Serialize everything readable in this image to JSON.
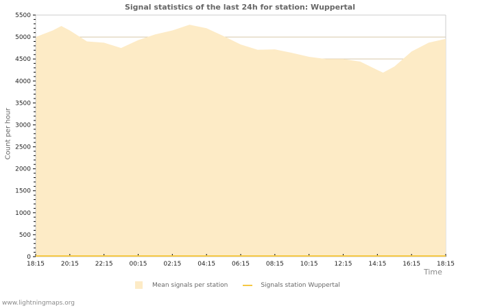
{
  "header": {
    "title": "Signal statistics of the last 24h for station: Wuppertal"
  },
  "axes": {
    "ylabel": "Count per hour",
    "xlabel": "Time"
  },
  "legend": {
    "items": [
      {
        "label": "Mean signals per station",
        "type": "area",
        "color": "#fdebc6"
      },
      {
        "label": "Signals station Wuppertal",
        "type": "line",
        "color": "#f5c842"
      }
    ]
  },
  "footer": {
    "text": "www.lightningmaps.org"
  },
  "colors": {
    "area_fill": "#fdebc6",
    "line": "#f5c842",
    "grid": "#d8c8a8",
    "axis": "#cccccc"
  },
  "chart_data": {
    "type": "area",
    "title": "Signal statistics of the last 24h for station: Wuppertal",
    "xlabel": "Time",
    "ylabel": "Count per hour",
    "ylim": [
      0,
      5500
    ],
    "yticks": [
      0,
      500,
      1000,
      1500,
      2000,
      2500,
      3000,
      3500,
      4000,
      4500,
      5000,
      5500
    ],
    "xtick_labels": [
      "18:15",
      "20:15",
      "22:15",
      "00:15",
      "02:15",
      "04:15",
      "06:15",
      "08:15",
      "10:15",
      "12:15",
      "14:15",
      "16:15",
      "18:15"
    ],
    "grid": true,
    "legend_position": "bottom",
    "x": [
      "18:15",
      "19:15",
      "19:45",
      "20:15",
      "21:15",
      "22:15",
      "23:15",
      "00:15",
      "01:15",
      "02:15",
      "03:15",
      "04:15",
      "05:15",
      "06:15",
      "07:15",
      "08:15",
      "09:15",
      "10:15",
      "11:15",
      "12:15",
      "13:15",
      "14:15",
      "14:35",
      "15:15",
      "16:15",
      "17:15",
      "18:15"
    ],
    "series": [
      {
        "name": "Mean signals per station",
        "type": "area",
        "values": [
          5000,
          5150,
          5250,
          5150,
          4900,
          4870,
          4750,
          4930,
          5060,
          5150,
          5280,
          5200,
          5020,
          4830,
          4710,
          4720,
          4640,
          4550,
          4500,
          4500,
          4440,
          4250,
          4190,
          4330,
          4670,
          4870,
          4960
        ]
      },
      {
        "name": "Signals station Wuppertal",
        "type": "line",
        "values": [
          0,
          0,
          0,
          0,
          0,
          0,
          0,
          0,
          0,
          0,
          0,
          0,
          0,
          0,
          0,
          0,
          0,
          0,
          0,
          0,
          0,
          0,
          0,
          0,
          0,
          0,
          0
        ]
      }
    ]
  }
}
